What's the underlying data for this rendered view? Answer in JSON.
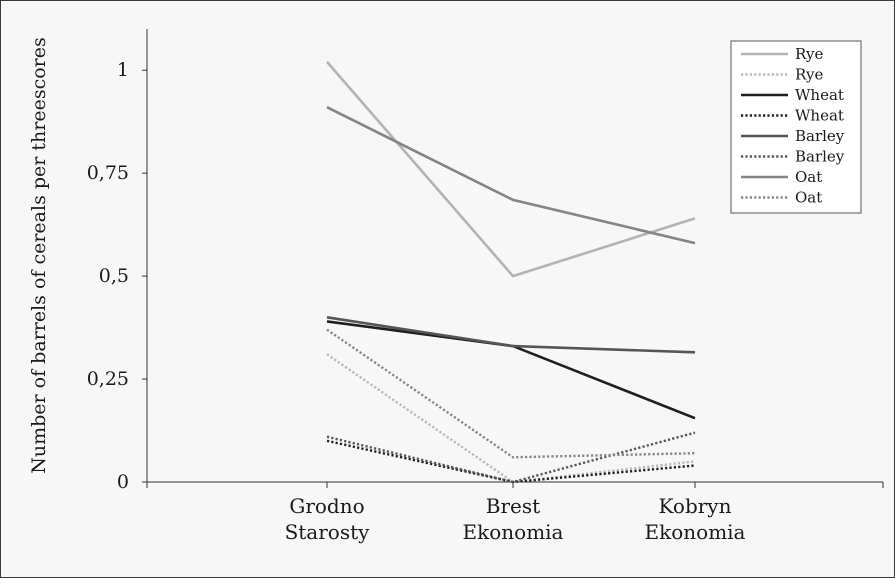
{
  "chart_data": {
    "type": "line",
    "title": "",
    "xlabel": "",
    "ylabel": "Number of barrels of cereals per threescores",
    "categories": [
      [
        "Grodno",
        "Starosty"
      ],
      [
        "Brest",
        "Ekonomia"
      ],
      [
        "Kobryn",
        "Ekonomia"
      ]
    ],
    "ylim": [
      0,
      1.1
    ],
    "yticks": [
      0,
      0.25,
      0.5,
      0.75,
      1
    ],
    "ytick_labels": [
      "0",
      "0,25",
      "0,5",
      "0,75",
      "1"
    ],
    "legend_position": "top-right",
    "grid": false,
    "series": [
      {
        "name": "Rye",
        "style": "solid",
        "color": "#b3b3b3",
        "values": [
          1.02,
          0.5,
          0.64
        ]
      },
      {
        "name": "Rye",
        "style": "dotted",
        "color": "#b8b8b8",
        "values": [
          0.31,
          0.0,
          0.05
        ]
      },
      {
        "name": "Wheat",
        "style": "solid",
        "color": "#1f1f1f",
        "values": [
          0.39,
          0.33,
          0.155
        ]
      },
      {
        "name": "Wheat",
        "style": "dotted",
        "color": "#1f1f1f",
        "values": [
          0.1,
          0.0,
          0.04
        ]
      },
      {
        "name": "Barley",
        "style": "solid",
        "color": "#555555",
        "values": [
          0.4,
          0.33,
          0.315
        ]
      },
      {
        "name": "Barley",
        "style": "dotted",
        "color": "#555555",
        "values": [
          0.11,
          0.0,
          0.12
        ]
      },
      {
        "name": "Oat",
        "style": "solid",
        "color": "#858585",
        "values": [
          0.91,
          0.685,
          0.58
        ]
      },
      {
        "name": "Oat",
        "style": "dotted",
        "color": "#858585",
        "values": [
          0.37,
          0.06,
          0.07
        ]
      }
    ]
  }
}
